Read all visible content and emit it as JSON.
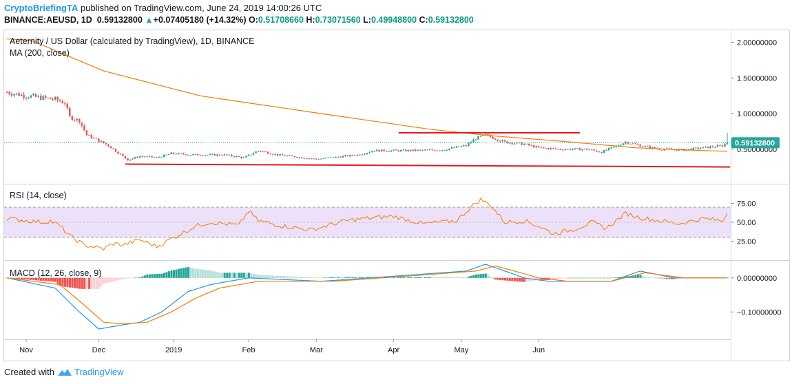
{
  "header": {
    "user": "CryptoBriefingTA",
    "published": " published on TradingView.com, June 24, 2019 14:00:26 UTC",
    "symbol": "BINANCE:AEUSD, 1D",
    "close_val": "0.59132800",
    "change": "+0.07405180 (+14.32%)",
    "o_label": "O:",
    "o_val": "0.51708660",
    "h_label": "H:",
    "h_val": "0.73071560",
    "l_label": "L:",
    "l_val": "0.49948800",
    "c_label": "C:",
    "c_val": "0.59132800"
  },
  "main_pane": {
    "title": "Aeternity / US Dollar (calculated by TradingView), 1D, BINANCE",
    "indicator": "MA (200, close)",
    "price_tag": "0.59132800",
    "y_ticks": [
      "2.00000000",
      "1.50000000",
      "1.00000000",
      "0.50000000"
    ]
  },
  "rsi_pane": {
    "title": "RSI (14, close)",
    "y_ticks": [
      "75.00",
      "50.00",
      "25.00"
    ]
  },
  "macd_pane": {
    "title": "MACD (12, 26, close, 9)",
    "y_ticks": [
      "0.00000000",
      "−0.10000000"
    ]
  },
  "x_axis": {
    "labels": [
      "Nov",
      "Dec",
      "2019",
      "Feb",
      "Mar",
      "Apr",
      "May",
      "Jun"
    ]
  },
  "footer": {
    "created_with": "Created with",
    "brand": "TradingView"
  },
  "colors": {
    "up": "#26a69a",
    "down": "#ef5350",
    "ma": "#f57c00",
    "rsi_band": "#ede1fa",
    "macd_line": "#2196f3",
    "signal_line": "#f57c00",
    "trendline": "#e31a1c"
  },
  "chart_data": [
    {
      "type": "candlestick",
      "title": "Aeternity / US Dollar (calculated by TradingView), 1D, BINANCE",
      "x": [
        "Nov",
        "Dec",
        "2019",
        "Feb",
        "Mar",
        "Apr",
        "May",
        "Jun"
      ],
      "ylim": [
        0.0,
        2.2
      ],
      "ma200": [
        [
          0,
          2.05
        ],
        [
          10,
          2.03
        ],
        [
          40,
          1.6
        ],
        [
          80,
          1.25
        ],
        [
          130,
          1.0
        ],
        [
          175,
          0.78
        ],
        [
          200,
          0.69
        ],
        [
          230,
          0.61
        ],
        [
          260,
          0.52
        ],
        [
          280,
          0.49
        ],
        [
          298,
          0.47
        ]
      ],
      "close_anchors": [
        [
          0,
          1.3
        ],
        [
          8,
          1.25
        ],
        [
          20,
          1.2
        ],
        [
          24,
          1.15
        ],
        [
          26,
          0.95
        ],
        [
          30,
          0.9
        ],
        [
          33,
          0.7
        ],
        [
          38,
          0.62
        ],
        [
          42,
          0.55
        ],
        [
          46,
          0.45
        ],
        [
          50,
          0.35
        ],
        [
          55,
          0.4
        ],
        [
          62,
          0.38
        ],
        [
          68,
          0.44
        ],
        [
          78,
          0.42
        ],
        [
          90,
          0.42
        ],
        [
          98,
          0.38
        ],
        [
          104,
          0.48
        ],
        [
          112,
          0.42
        ],
        [
          128,
          0.36
        ],
        [
          145,
          0.42
        ],
        [
          152,
          0.48
        ],
        [
          165,
          0.48
        ],
        [
          180,
          0.49
        ],
        [
          190,
          0.55
        ],
        [
          194,
          0.65
        ],
        [
          198,
          0.7
        ],
        [
          202,
          0.65
        ],
        [
          206,
          0.6
        ],
        [
          214,
          0.57
        ],
        [
          220,
          0.52
        ],
        [
          228,
          0.5
        ],
        [
          240,
          0.5
        ],
        [
          246,
          0.46
        ],
        [
          256,
          0.6
        ],
        [
          262,
          0.55
        ],
        [
          270,
          0.5
        ],
        [
          280,
          0.49
        ],
        [
          288,
          0.52
        ],
        [
          296,
          0.55
        ],
        [
          298,
          0.59
        ]
      ],
      "last": 0.591328,
      "last_high": 0.730716
    },
    {
      "type": "line",
      "title": "RSI (14, close)",
      "ylim": [
        0,
        100
      ],
      "band": [
        30,
        70
      ],
      "points": [
        [
          0,
          55
        ],
        [
          15,
          50
        ],
        [
          18,
          52
        ],
        [
          22,
          45
        ],
        [
          26,
          32
        ],
        [
          32,
          20
        ],
        [
          40,
          15
        ],
        [
          44,
          22
        ],
        [
          48,
          20
        ],
        [
          55,
          27
        ],
        [
          62,
          18
        ],
        [
          68,
          28
        ],
        [
          78,
          45
        ],
        [
          84,
          50
        ],
        [
          96,
          46
        ],
        [
          100,
          65
        ],
        [
          104,
          52
        ],
        [
          114,
          45
        ],
        [
          126,
          40
        ],
        [
          140,
          52
        ],
        [
          148,
          55
        ],
        [
          160,
          58
        ],
        [
          172,
          48
        ],
        [
          186,
          52
        ],
        [
          192,
          70
        ],
        [
          196,
          80
        ],
        [
          200,
          73
        ],
        [
          206,
          50
        ],
        [
          214,
          52
        ],
        [
          220,
          45
        ],
        [
          226,
          35
        ],
        [
          234,
          40
        ],
        [
          242,
          50
        ],
        [
          248,
          42
        ],
        [
          256,
          62
        ],
        [
          262,
          56
        ],
        [
          270,
          52
        ],
        [
          278,
          48
        ],
        [
          288,
          55
        ],
        [
          296,
          52
        ],
        [
          298,
          63
        ]
      ]
    },
    {
      "type": "line",
      "title": "MACD (12, 26, close, 9)",
      "ylim": [
        -0.18,
        0.05
      ],
      "series": [
        {
          "role": "macd",
          "points": [
            [
              0,
              0.0
            ],
            [
              20,
              -0.03
            ],
            [
              30,
              -0.1
            ],
            [
              38,
              -0.15
            ],
            [
              46,
              -0.14
            ],
            [
              55,
              -0.13
            ],
            [
              64,
              -0.1
            ],
            [
              75,
              -0.04
            ],
            [
              84,
              -0.02
            ],
            [
              100,
              0.0
            ],
            [
              130,
              -0.01
            ],
            [
              150,
              0.0
            ],
            [
              170,
              0.01
            ],
            [
              190,
              0.02
            ],
            [
              198,
              0.04
            ],
            [
              206,
              0.02
            ],
            [
              214,
              0.0
            ],
            [
              224,
              -0.01
            ],
            [
              238,
              -0.01
            ],
            [
              250,
              -0.01
            ],
            [
              262,
              0.02
            ],
            [
              276,
              0.0
            ],
            [
              298,
              0.0
            ]
          ]
        },
        {
          "role": "signal",
          "points": [
            [
              0,
              0.0
            ],
            [
              22,
              -0.02
            ],
            [
              32,
              -0.08
            ],
            [
              40,
              -0.13
            ],
            [
              48,
              -0.135
            ],
            [
              58,
              -0.13
            ],
            [
              68,
              -0.1
            ],
            [
              78,
              -0.06
            ],
            [
              88,
              -0.03
            ],
            [
              104,
              -0.01
            ],
            [
              135,
              -0.01
            ],
            [
              155,
              0.0
            ],
            [
              175,
              0.01
            ],
            [
              194,
              0.02
            ],
            [
              202,
              0.035
            ],
            [
              210,
              0.02
            ],
            [
              220,
              0.0
            ],
            [
              232,
              -0.01
            ],
            [
              250,
              -0.01
            ],
            [
              264,
              0.015
            ],
            [
              280,
              0.0
            ],
            [
              298,
              0.0
            ]
          ]
        }
      ]
    }
  ]
}
